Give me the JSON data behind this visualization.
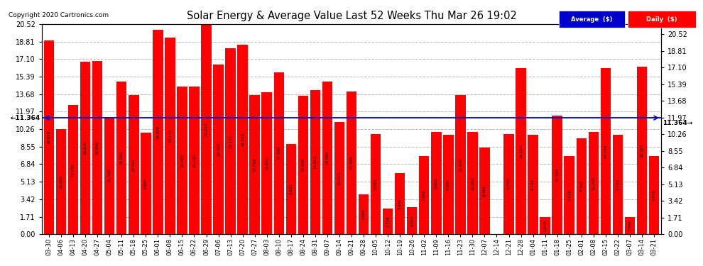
{
  "title": "Solar Energy & Average Value Last 52 Weeks Thu Mar 26 19:02",
  "copyright": "Copyright 2020 Cartronics.com",
  "average_value": 11.364,
  "ytick_values": [
    0.0,
    1.71,
    3.42,
    5.13,
    6.84,
    8.55,
    10.26,
    11.97,
    13.68,
    15.39,
    17.1,
    18.81,
    20.52
  ],
  "bar_color": "#ff0000",
  "avg_line_color": "#0000cc",
  "grid_color": "#999999",
  "background_color": "#ffffff",
  "legend_avg_bg": "#0000cc",
  "legend_daily_bg": "#ff0000",
  "categories": [
    "03-30",
    "04-06",
    "04-13",
    "04-20",
    "04-27",
    "05-04",
    "05-11",
    "05-18",
    "05-25",
    "06-01",
    "06-08",
    "06-15",
    "06-22",
    "06-29",
    "07-06",
    "07-13",
    "07-20",
    "07-27",
    "08-03",
    "08-10",
    "08-17",
    "08-24",
    "08-31",
    "09-07",
    "09-14",
    "09-21",
    "09-28",
    "10-05",
    "10-12",
    "10-19",
    "10-26",
    "11-02",
    "11-09",
    "11-16",
    "11-23",
    "11-30",
    "12-07",
    "12-14",
    "12-21",
    "12-28",
    "01-04",
    "01-11",
    "01-18",
    "01-25",
    "02-01",
    "02-08",
    "02-15",
    "02-22",
    "03-07",
    "03-14",
    "03-21"
  ],
  "values": [
    18.929,
    10.28,
    12.63,
    16.84,
    16.94,
    11.408,
    14.908,
    13.597,
    9.908,
    19.978,
    19.173,
    14.4,
    14.43,
    20.523,
    16.559,
    18.171,
    18.53,
    13.599,
    13.84,
    15.84,
    8.835,
    13.498,
    14.052,
    14.896,
    10.975,
    13.949,
    3.909,
    9.782,
    2.508,
    5.942,
    2.651,
    7.606,
    9.993,
    9.693,
    13.6,
    10.002,
    8.465,
    0.008,
    9.799,
    16.234,
    9.709,
    1.649,
    11.594,
    7.638,
    9.384,
    10.008,
    16.234,
    9.709,
    1.649,
    16.384,
    7.638
  ],
  "figsize": [
    9.9,
    3.75
  ],
  "dpi": 100
}
